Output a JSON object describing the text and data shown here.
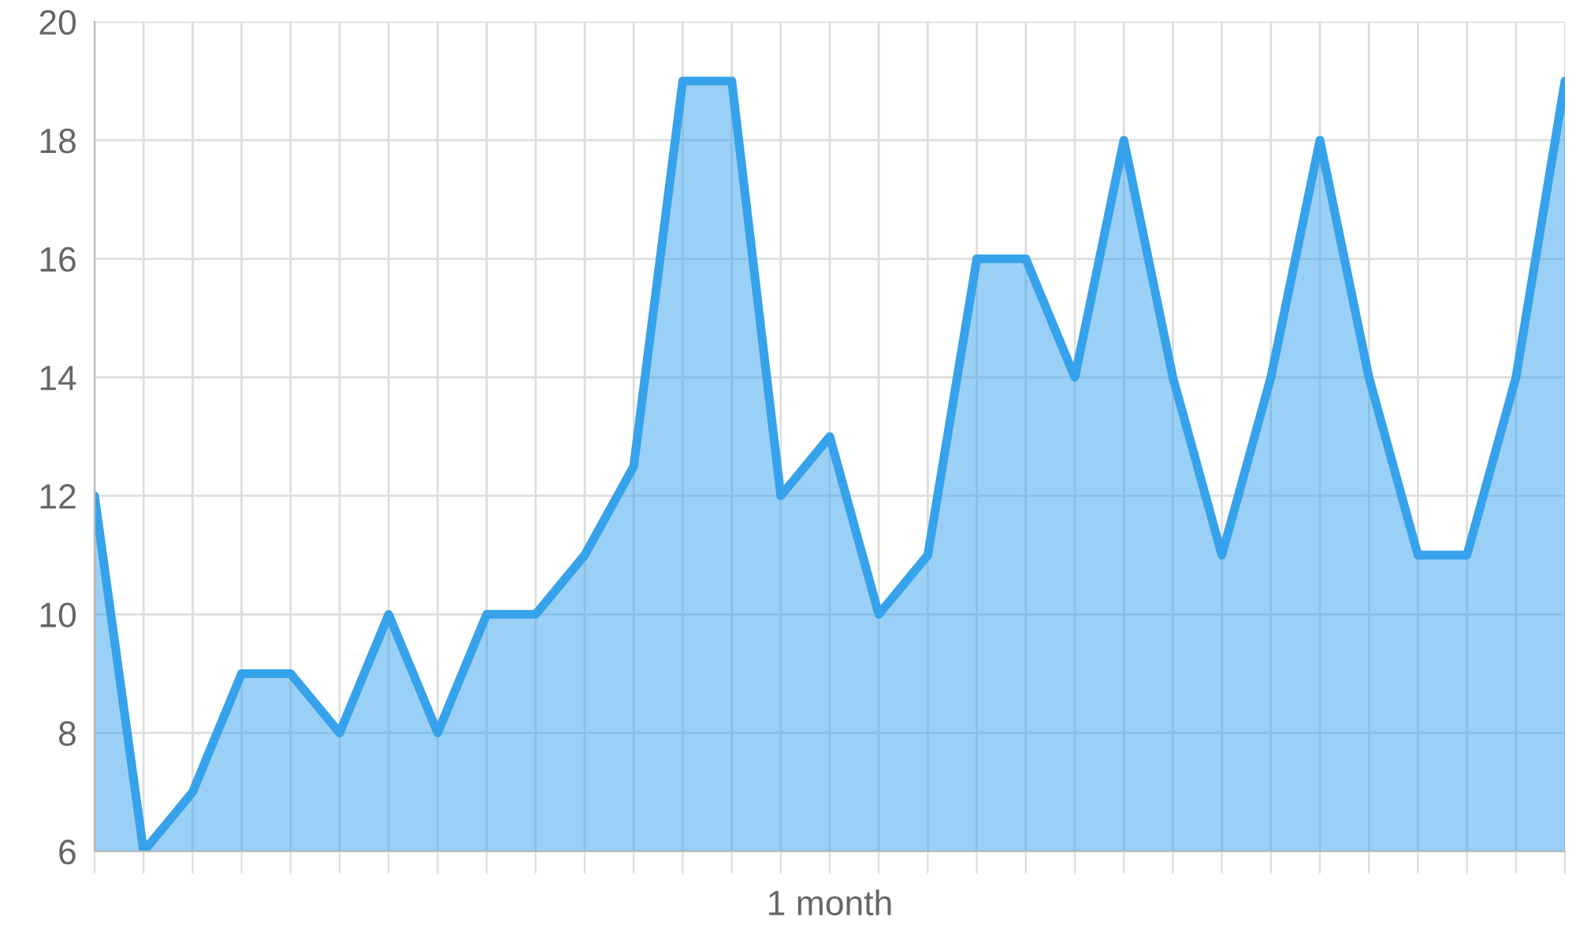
{
  "chart_data": {
    "type": "area",
    "xlabel": "1 month",
    "categories": [
      null,
      null,
      null,
      null,
      null,
      null,
      null,
      null,
      null,
      null,
      null,
      null,
      null,
      null,
      null,
      null,
      null,
      null,
      null,
      null,
      null,
      null,
      null,
      null,
      null,
      null,
      null,
      null,
      null,
      null,
      null
    ],
    "series": [
      {
        "color": "#36a2eb",
        "values": [
          12,
          6,
          7,
          9,
          9,
          8,
          10,
          8,
          10,
          10,
          11,
          12.5,
          19,
          19,
          12,
          13,
          10,
          11,
          16,
          16,
          14,
          18,
          14,
          11,
          14,
          18,
          14,
          11,
          11,
          14,
          19
        ]
      }
    ],
    "ylim": [
      6,
      20
    ],
    "yticks": [
      6,
      8,
      10,
      12,
      14,
      16,
      18,
      20
    ],
    "grid": true
  }
}
